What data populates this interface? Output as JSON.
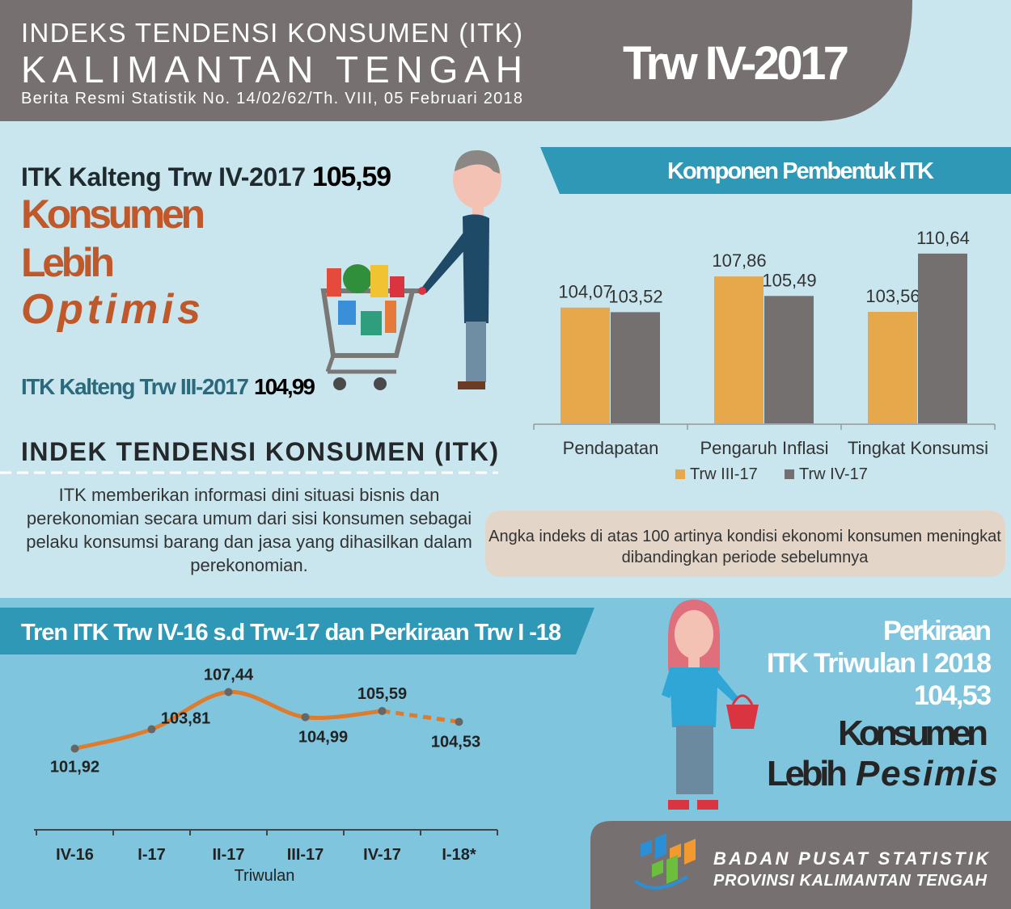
{
  "header": {
    "line1": "INDEKS TENDENSI KONSUMEN (ITK)",
    "line2": "KALIMANTAN TENGAH",
    "line3": "Berita Resmi Statistik No. 14/02/62/Th. VIII, 05 Februari 2018",
    "period": "Trw IV-2017"
  },
  "summary": {
    "current_label": "ITK Kalteng Trw IV-2017",
    "current_value": "105,59",
    "verdict1": "Konsumen",
    "verdict2": "Lebih",
    "verdict3": "Optimis",
    "previous_label": "ITK Kalteng Trw III-2017",
    "previous_value": "104,99"
  },
  "definition": {
    "title": "INDEK TENDENSI KONSUMEN (ITK)",
    "lines": [
      "ITK memberikan informasi dini situasi bisnis dan",
      "perekonomian secara umum dari sisi konsumen sebagai",
      "pelaku konsumsi barang dan jasa yang dihasilkan dalam",
      "perekonomian."
    ]
  },
  "note": {
    "lines": [
      "Angka indeks di atas 100 artinya kondisi ekonomi konsumen meningkat",
      "dibandingkan periode sebelumnya"
    ]
  },
  "forecast": {
    "line1": "Perkiraan",
    "line2": "ITK Triwulan I 2018",
    "value": "104,53",
    "verdict1": "Konsumen",
    "verdict2": "Lebih",
    "verdict3": "Pesimis"
  },
  "footer": {
    "org1": "BADAN PUSAT STATISTIK",
    "org2": "PROVINSI KALIMANTAN TENGAH"
  },
  "chart_data": [
    {
      "type": "bar",
      "title": "Komponen Pembentuk ITK",
      "categories": [
        "Pendapatan",
        "Pengaruh Inflasi",
        "Tingkat Konsumsi"
      ],
      "series": [
        {
          "name": "Trw III-17",
          "color": "#e6a84a",
          "values": [
            104.07,
            107.86,
            103.56
          ],
          "value_labels": [
            "104,07",
            "107,86",
            "103,56"
          ]
        },
        {
          "name": "Trw IV-17",
          "color": "#747070",
          "values": [
            103.52,
            105.49,
            110.64
          ],
          "value_labels": [
            "103,52",
            "105,49",
            "110,64"
          ]
        }
      ],
      "ylim": [
        90,
        112
      ],
      "legend": "bottom"
    },
    {
      "type": "line",
      "title": "Tren ITK Trw IV-16 s.d Trw-17 dan Perkiraan Trw I -18",
      "categories": [
        "IV-16",
        "I-17",
        "II-17",
        "III-17",
        "IV-17",
        "I-18*"
      ],
      "xlabel": "Triwulan",
      "series": [
        {
          "color": "#e07b2c",
          "values": [
            101.92,
            103.81,
            107.44,
            104.99,
            105.59,
            104.53
          ],
          "value_labels": [
            "101,92",
            "103,81",
            "107,44",
            "104,99",
            "105,59",
            "104,53"
          ]
        }
      ],
      "forecast_from": 4,
      "ylim": [
        94,
        110
      ]
    }
  ]
}
